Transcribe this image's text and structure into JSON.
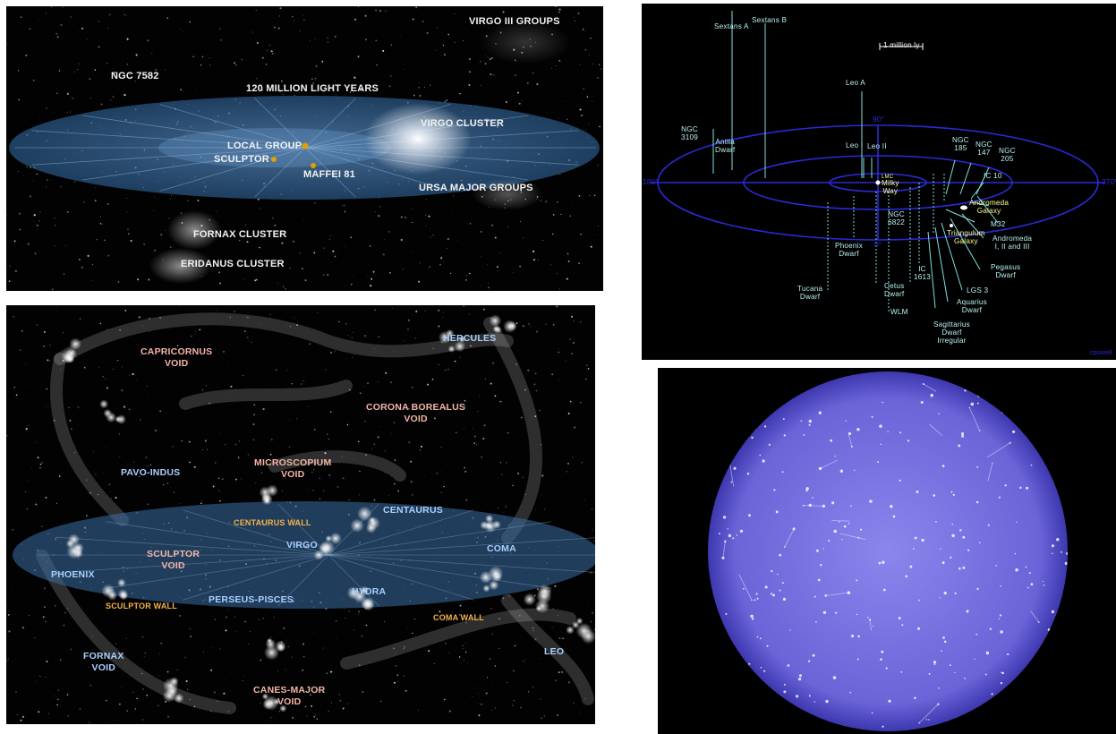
{
  "panel1": {
    "labels": {
      "virgo_iii": "VIRGO III GROUPS",
      "ngc7582": "NGC 7582",
      "scale": "120 MILLION LIGHT YEARS",
      "virgo_cluster": "VIRGO CLUSTER",
      "local_group": "LOCAL GROUP",
      "sculptor": "SCULPTOR",
      "maffei": "MAFFEI 81",
      "ursa": "URSA MAJOR GROUPS",
      "fornax": "FORNAX CLUSTER",
      "eridanus": "ERIDANUS CLUSTER"
    },
    "colors": {
      "disc": "#4a7bb0",
      "galaxy_dot": "#e0a000"
    }
  },
  "panel2": {
    "labels": {
      "capricornus": "CAPRICORNUS\nVOID",
      "hercules": "HERCULES",
      "corona": "CORONA BOREALUS\nVOID",
      "pavo": "PAVO-INDUS",
      "micro": "MICROSCOPIUM\nVOID",
      "centaurus_wall": "CENTAURUS WALL",
      "centaurus": "CENTAURUS",
      "sculptor_void": "SCULPTOR\nVOID",
      "virgo": "VIRGO",
      "coma": "COMA",
      "phoenix": "PHOENIX",
      "hydra": "HYDRA",
      "perseus": "PERSEUS-PISCES",
      "sculptor_wall": "SCULPTOR WALL",
      "coma_wall": "COMA WALL",
      "fornax_void": "FORNAX\nVOID",
      "leo": "LEO",
      "canes": "CANES-MAJOR\nVOID"
    },
    "colors": {
      "void": "#f4b4a8",
      "supercluster": "#a9d0ff",
      "wall": "#f5b24a"
    }
  },
  "panel3": {
    "labels": {
      "sextans_a": "Sextans A",
      "sextans_b": "Sextans B",
      "scale": "1 million ly",
      "leo_a": "Leo A",
      "ngc3109": "NGC\n3109",
      "antlia": "Antlia\nDwarf",
      "deg90": "90°",
      "leo_i": "Leo I",
      "leo_ii": "Leo II",
      "ngc185": "NGC\n185",
      "ngc147": "NGC\n147",
      "ngc205": "NGC\n205",
      "ic10": "IC 10",
      "deg180": "180°",
      "deg270": "270°",
      "milky_way": "Milky\nWay",
      "lmc": "LMC",
      "andromeda": "Andromeda\nGalaxy",
      "m32": "M32",
      "ngc6822": "NGC\n6822",
      "triangulum": "Triangulum\nGalaxy",
      "deg0": "0°",
      "andromeda_sats": "Andromeda\nI, II and III",
      "phoenix": "Phoenix\nDwarf",
      "pegasus": "Pegasus\nDwarf",
      "ic1613": "IC\n1613",
      "cetus": "Cetus\nDwarf",
      "lgs3": "LGS 3",
      "tucana": "Tucana\nDwarf",
      "aquarius": "Aquarius\nDwarf",
      "wlm": "WLM",
      "sagittarius": "Sagittarius\nDwarf\nIrregular",
      "credit": "cpowell"
    },
    "colors": {
      "ring": "#2a2ad8",
      "line": "#7fe0e0",
      "label": "#b8f0f0",
      "highlight": "#ffff90"
    }
  },
  "panel4": {
    "colors": {
      "web": "#6a64d8",
      "filament": "#d8d8ff"
    }
  }
}
